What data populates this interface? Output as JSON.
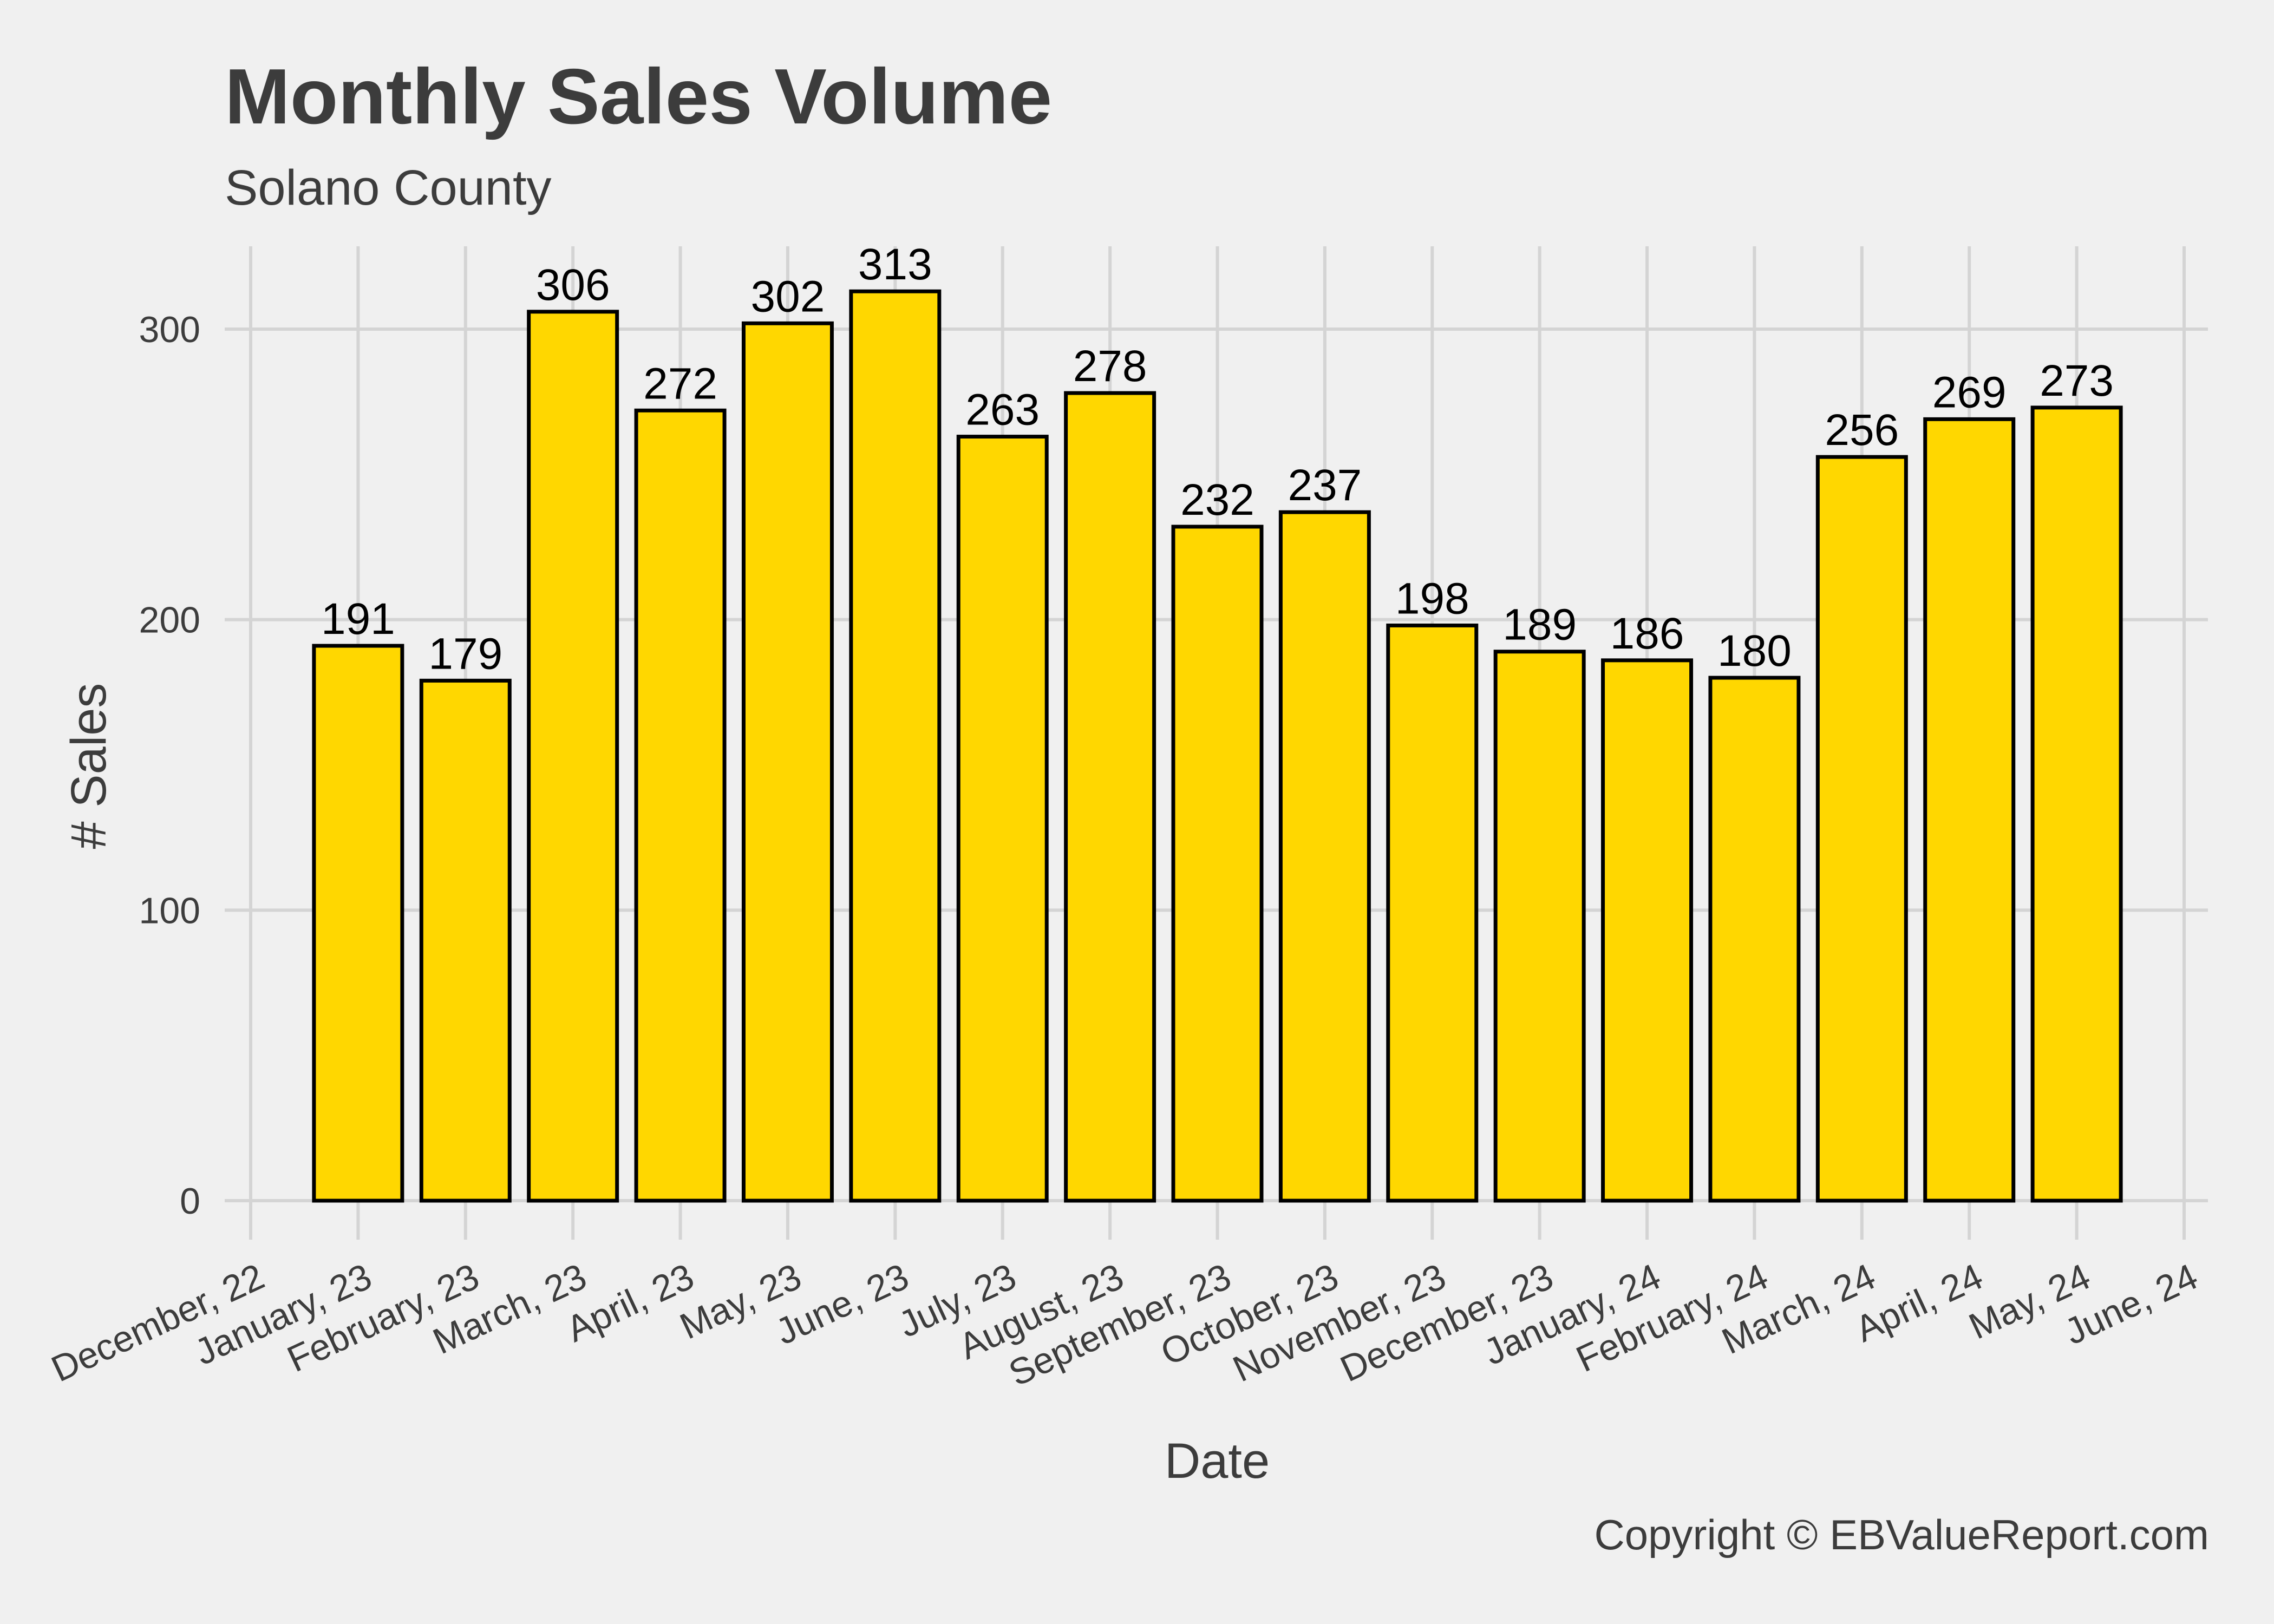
{
  "chart_data": {
    "type": "bar",
    "title": "Monthly Sales Volume",
    "subtitle": "Solano County",
    "xlabel": "Date",
    "ylabel": "# Sales",
    "caption": "Copyright  © EBValueReport.com",
    "x_tick_labels": [
      "December, 22",
      "January, 23",
      "February, 23",
      "March, 23",
      "April, 23",
      "May, 23",
      "June, 23",
      "July, 23",
      "August, 23",
      "September, 23",
      "October, 23",
      "November, 23",
      "December, 23",
      "January, 24",
      "February, 24",
      "March, 24",
      "April, 24",
      "May, 24",
      "June, 24"
    ],
    "categories": [
      "January, 23",
      "February, 23",
      "March, 23",
      "April, 23",
      "May, 23",
      "June, 23",
      "July, 23",
      "August, 23",
      "September, 23",
      "October, 23",
      "November, 23",
      "December, 23",
      "January, 24",
      "February, 24",
      "March, 24",
      "April, 24",
      "May, 24"
    ],
    "values": [
      191,
      179,
      306,
      272,
      302,
      313,
      263,
      278,
      232,
      237,
      198,
      189,
      186,
      180,
      256,
      269,
      273
    ],
    "y_ticks": [
      0,
      100,
      200,
      300
    ],
    "ylim": [
      -16,
      328
    ],
    "grid": true,
    "legend": "none",
    "bar_fill": "#FFD700",
    "bar_stroke": "#000000",
    "grid_color": "#d4d4d4",
    "background": "#f0f0f0"
  }
}
